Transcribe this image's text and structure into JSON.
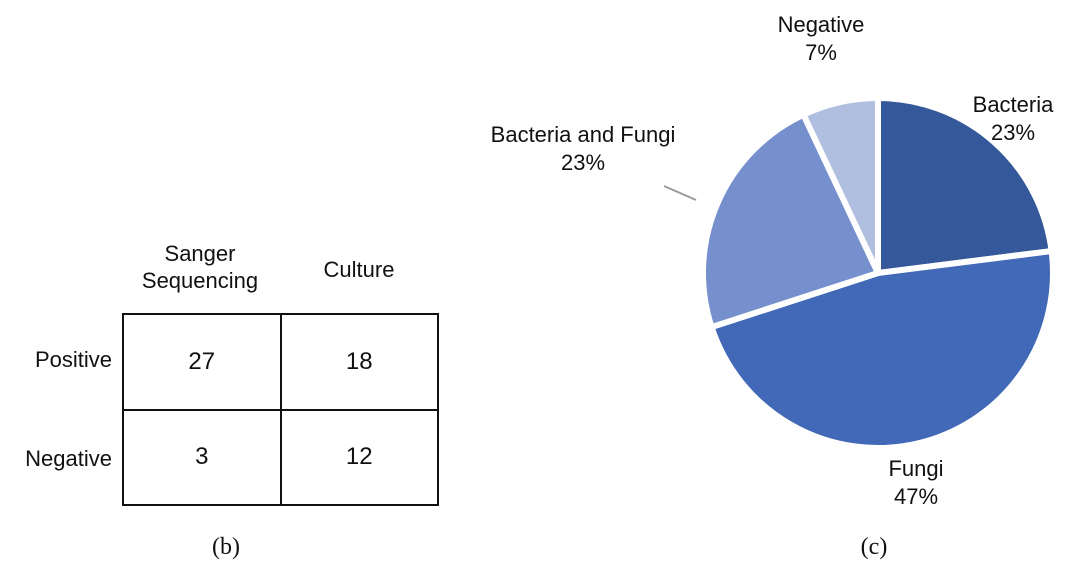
{
  "table": {
    "col_headers": [
      "Sanger\nSequencing",
      "Culture"
    ],
    "col_header_lines": [
      [
        "Sanger",
        "Sequencing"
      ],
      [
        "Culture"
      ]
    ],
    "row_headers": [
      "Positive",
      "Negative"
    ],
    "cells": [
      [
        "27",
        "18"
      ],
      [
        "3",
        "12"
      ]
    ],
    "panel_label": "(b)"
  },
  "chart_data": {
    "type": "pie",
    "title": "",
    "panel_label": "(c)",
    "start_angle_deg": 0,
    "direction": "clockwise",
    "slices": [
      {
        "label": "Bacteria",
        "value": 23,
        "pct_label": "23%",
        "color": "#34589a",
        "explode": false
      },
      {
        "label": "Fungi",
        "value": 47,
        "pct_label": "47%",
        "color": "#4169b8",
        "explode": false
      },
      {
        "label": "Bacteria and Fungi",
        "value": 23,
        "pct_label": "23%",
        "color": "#768fcd",
        "explode": false
      },
      {
        "label": "Negative",
        "value": 7,
        "pct_label": "7%",
        "color": "#b0bee0",
        "explode": false
      }
    ],
    "legend": "none"
  }
}
